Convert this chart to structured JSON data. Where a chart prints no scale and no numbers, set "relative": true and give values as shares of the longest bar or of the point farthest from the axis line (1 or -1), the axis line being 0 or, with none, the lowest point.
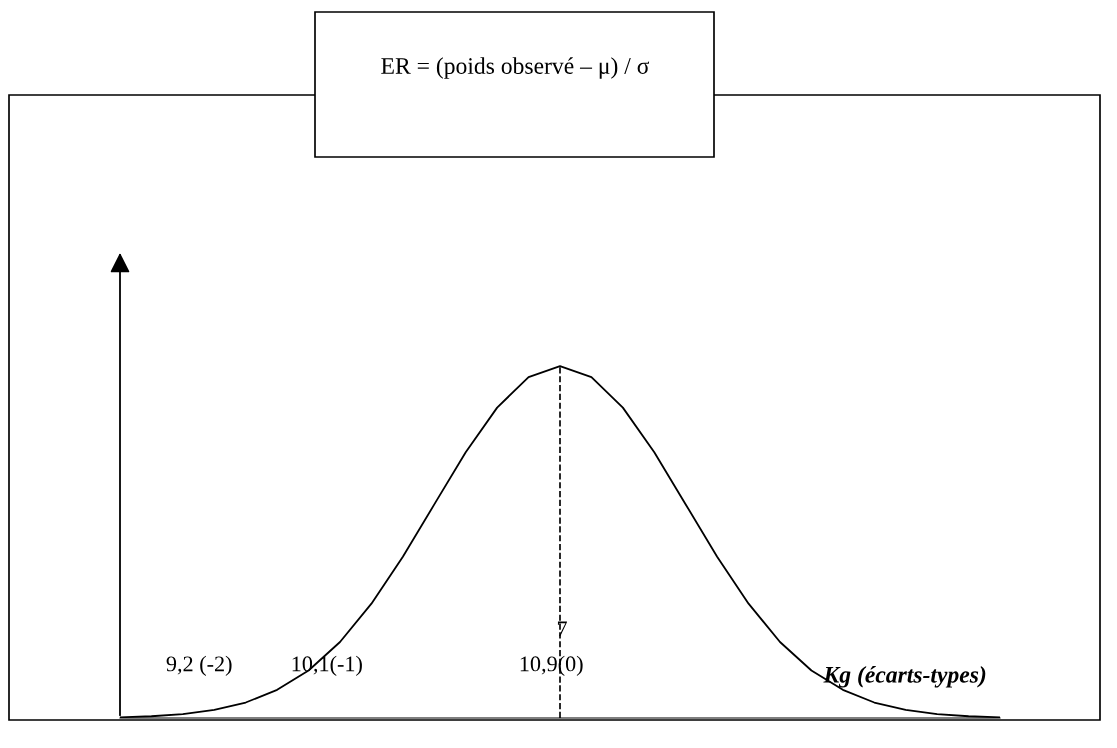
{
  "chart_data": {
    "type": "line",
    "title": "ER = (poids observé – μ) / σ",
    "xlabel": "Kg (écarts-types)",
    "relative": true,
    "categories": [
      null,
      null,
      null,
      null,
      null,
      null,
      null,
      null,
      null,
      null,
      null,
      null,
      null,
      null,
      null,
      null,
      null,
      null,
      null,
      null,
      null,
      null,
      null,
      null,
      null,
      null,
      null,
      null,
      null
    ],
    "series": [
      {
        "color": "#000000",
        "values": [
          0.002,
          0.005,
          0.011,
          0.023,
          0.044,
          0.08,
          0.135,
          0.216,
          0.325,
          0.458,
          0.607,
          0.755,
          0.882,
          0.969,
          1,
          0.969,
          0.882,
          0.755,
          0.607,
          0.458,
          0.325,
          0.216,
          0.135,
          0.08,
          0.044,
          0.023,
          0.011,
          0.005,
          0.002
        ]
      }
    ],
    "annotations": [
      "9,2 (-2)",
      "10,1(-1)",
      "10,9(0)",
      "7"
    ],
    "ref_lines": [
      {
        "axis": "x",
        "line_style": "dashed",
        "color": "#000000"
      }
    ],
    "legend": false,
    "marker": "none",
    "line_style": "solid"
  }
}
